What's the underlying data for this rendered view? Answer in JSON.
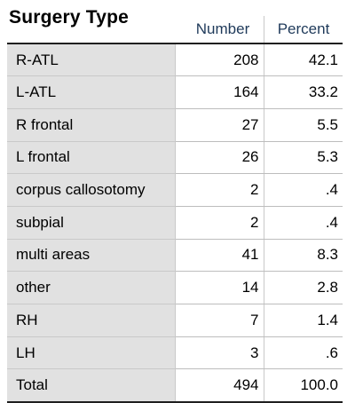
{
  "title": "Surgery Type",
  "columns": {
    "number": "Number",
    "percent": "Percent"
  },
  "rows": [
    {
      "label": "R-ATL",
      "number": "208",
      "percent": "42.1"
    },
    {
      "label": "L-ATL",
      "number": "164",
      "percent": "33.2"
    },
    {
      "label": "R frontal",
      "number": "27",
      "percent": "5.5"
    },
    {
      "label": "L frontal",
      "number": "26",
      "percent": "5.3"
    },
    {
      "label": "corpus callosotomy",
      "number": "2",
      "percent": ".4"
    },
    {
      "label": "subpial",
      "number": "2",
      "percent": ".4"
    },
    {
      "label": "multi areas",
      "number": "41",
      "percent": "8.3"
    },
    {
      "label": "other",
      "number": "14",
      "percent": "2.8"
    },
    {
      "label": "RH",
      "number": "7",
      "percent": "1.4"
    },
    {
      "label": "LH",
      "number": "3",
      "percent": ".6"
    },
    {
      "label": "Total",
      "number": "494",
      "percent": "100.0"
    }
  ]
}
